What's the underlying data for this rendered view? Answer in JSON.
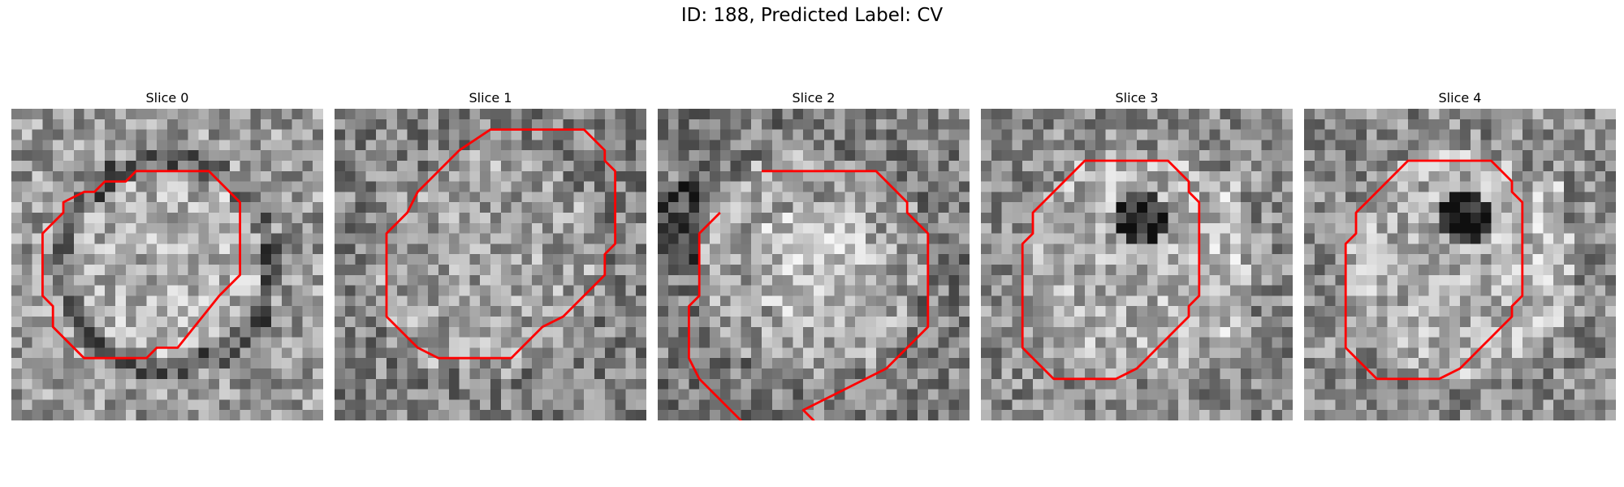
{
  "figure": {
    "title": "ID: 188, Predicted Label: CV"
  },
  "colors": {
    "contour": "#ff0000",
    "background": "#ffffff"
  },
  "slices": [
    {
      "title": "Slice 0",
      "seed": 11,
      "style": "ring",
      "contour": [
        [
          12,
          6
        ],
        [
          19,
          6
        ],
        [
          22,
          9
        ],
        [
          22,
          16
        ],
        [
          20,
          18
        ],
        [
          16,
          23
        ],
        [
          14,
          23
        ],
        [
          13,
          24
        ],
        [
          7,
          24
        ],
        [
          5,
          22
        ],
        [
          4,
          21
        ],
        [
          4,
          19
        ],
        [
          3,
          18
        ],
        [
          3,
          12
        ],
        [
          4,
          11
        ],
        [
          5,
          10
        ],
        [
          5,
          9
        ],
        [
          7,
          8
        ],
        [
          8,
          8
        ],
        [
          9,
          7
        ],
        [
          11,
          7
        ]
      ]
    },
    {
      "title": "Slice 1",
      "seed": 23,
      "style": "speckle",
      "contour": [
        [
          15,
          2
        ],
        [
          24,
          2
        ],
        [
          26,
          4
        ],
        [
          26,
          5
        ],
        [
          27,
          6
        ],
        [
          27,
          13
        ],
        [
          26,
          14
        ],
        [
          26,
          16
        ],
        [
          25,
          17
        ],
        [
          24,
          18
        ],
        [
          22,
          20
        ],
        [
          20,
          21
        ],
        [
          18,
          23
        ],
        [
          17,
          24
        ],
        [
          10,
          24
        ],
        [
          8,
          23
        ],
        [
          7,
          22
        ],
        [
          5,
          20
        ],
        [
          5,
          12
        ],
        [
          7,
          10
        ],
        [
          8,
          8
        ],
        [
          9,
          7
        ],
        [
          11,
          5
        ],
        [
          12,
          4
        ]
      ]
    },
    {
      "title": "Slice 2",
      "seed": 37,
      "style": "blob",
      "contour": [
        [
          10,
          6
        ],
        [
          21,
          6
        ],
        [
          24,
          9
        ],
        [
          24,
          10
        ],
        [
          25,
          11
        ],
        [
          26,
          12
        ],
        [
          26,
          21
        ],
        [
          22,
          25
        ],
        [
          20,
          26
        ],
        [
          18,
          27
        ],
        [
          16,
          28
        ],
        [
          14,
          29
        ],
        [
          15,
          30
        ],
        [
          15,
          31
        ],
        [
          8,
          31
        ],
        [
          8,
          30
        ],
        [
          7,
          29
        ],
        [
          6,
          28
        ],
        [
          5,
          27
        ],
        [
          4,
          26
        ],
        [
          3,
          24
        ],
        [
          3,
          19
        ],
        [
          4,
          18
        ],
        [
          4,
          12
        ],
        [
          6,
          10
        ]
      ]
    },
    {
      "title": "Slice 3",
      "seed": 53,
      "style": "dark-center",
      "contour": [
        [
          10,
          5
        ],
        [
          18,
          5
        ],
        [
          20,
          7
        ],
        [
          20,
          8
        ],
        [
          21,
          9
        ],
        [
          21,
          18
        ],
        [
          20,
          19
        ],
        [
          20,
          20
        ],
        [
          19,
          21
        ],
        [
          18,
          22
        ],
        [
          17,
          23
        ],
        [
          16,
          24
        ],
        [
          15,
          25
        ],
        [
          13,
          26
        ],
        [
          7,
          26
        ],
        [
          5,
          24
        ],
        [
          4,
          23
        ],
        [
          4,
          22
        ],
        [
          4,
          15
        ],
        [
          4,
          13
        ],
        [
          5,
          12
        ],
        [
          5,
          10
        ],
        [
          6,
          9
        ],
        [
          8,
          7
        ]
      ]
    },
    {
      "title": "Slice 4",
      "seed": 71,
      "style": "dark-center",
      "contour": [
        [
          10,
          5
        ],
        [
          18,
          5
        ],
        [
          20,
          7
        ],
        [
          20,
          8
        ],
        [
          21,
          9
        ],
        [
          21,
          18
        ],
        [
          20,
          19
        ],
        [
          20,
          20
        ],
        [
          19,
          21
        ],
        [
          18,
          22
        ],
        [
          17,
          23
        ],
        [
          16,
          24
        ],
        [
          15,
          25
        ],
        [
          13,
          26
        ],
        [
          7,
          26
        ],
        [
          5,
          24
        ],
        [
          4,
          23
        ],
        [
          4,
          22
        ],
        [
          4,
          15
        ],
        [
          4,
          13
        ],
        [
          5,
          12
        ],
        [
          5,
          10
        ],
        [
          6,
          9
        ],
        [
          8,
          7
        ]
      ]
    }
  ]
}
